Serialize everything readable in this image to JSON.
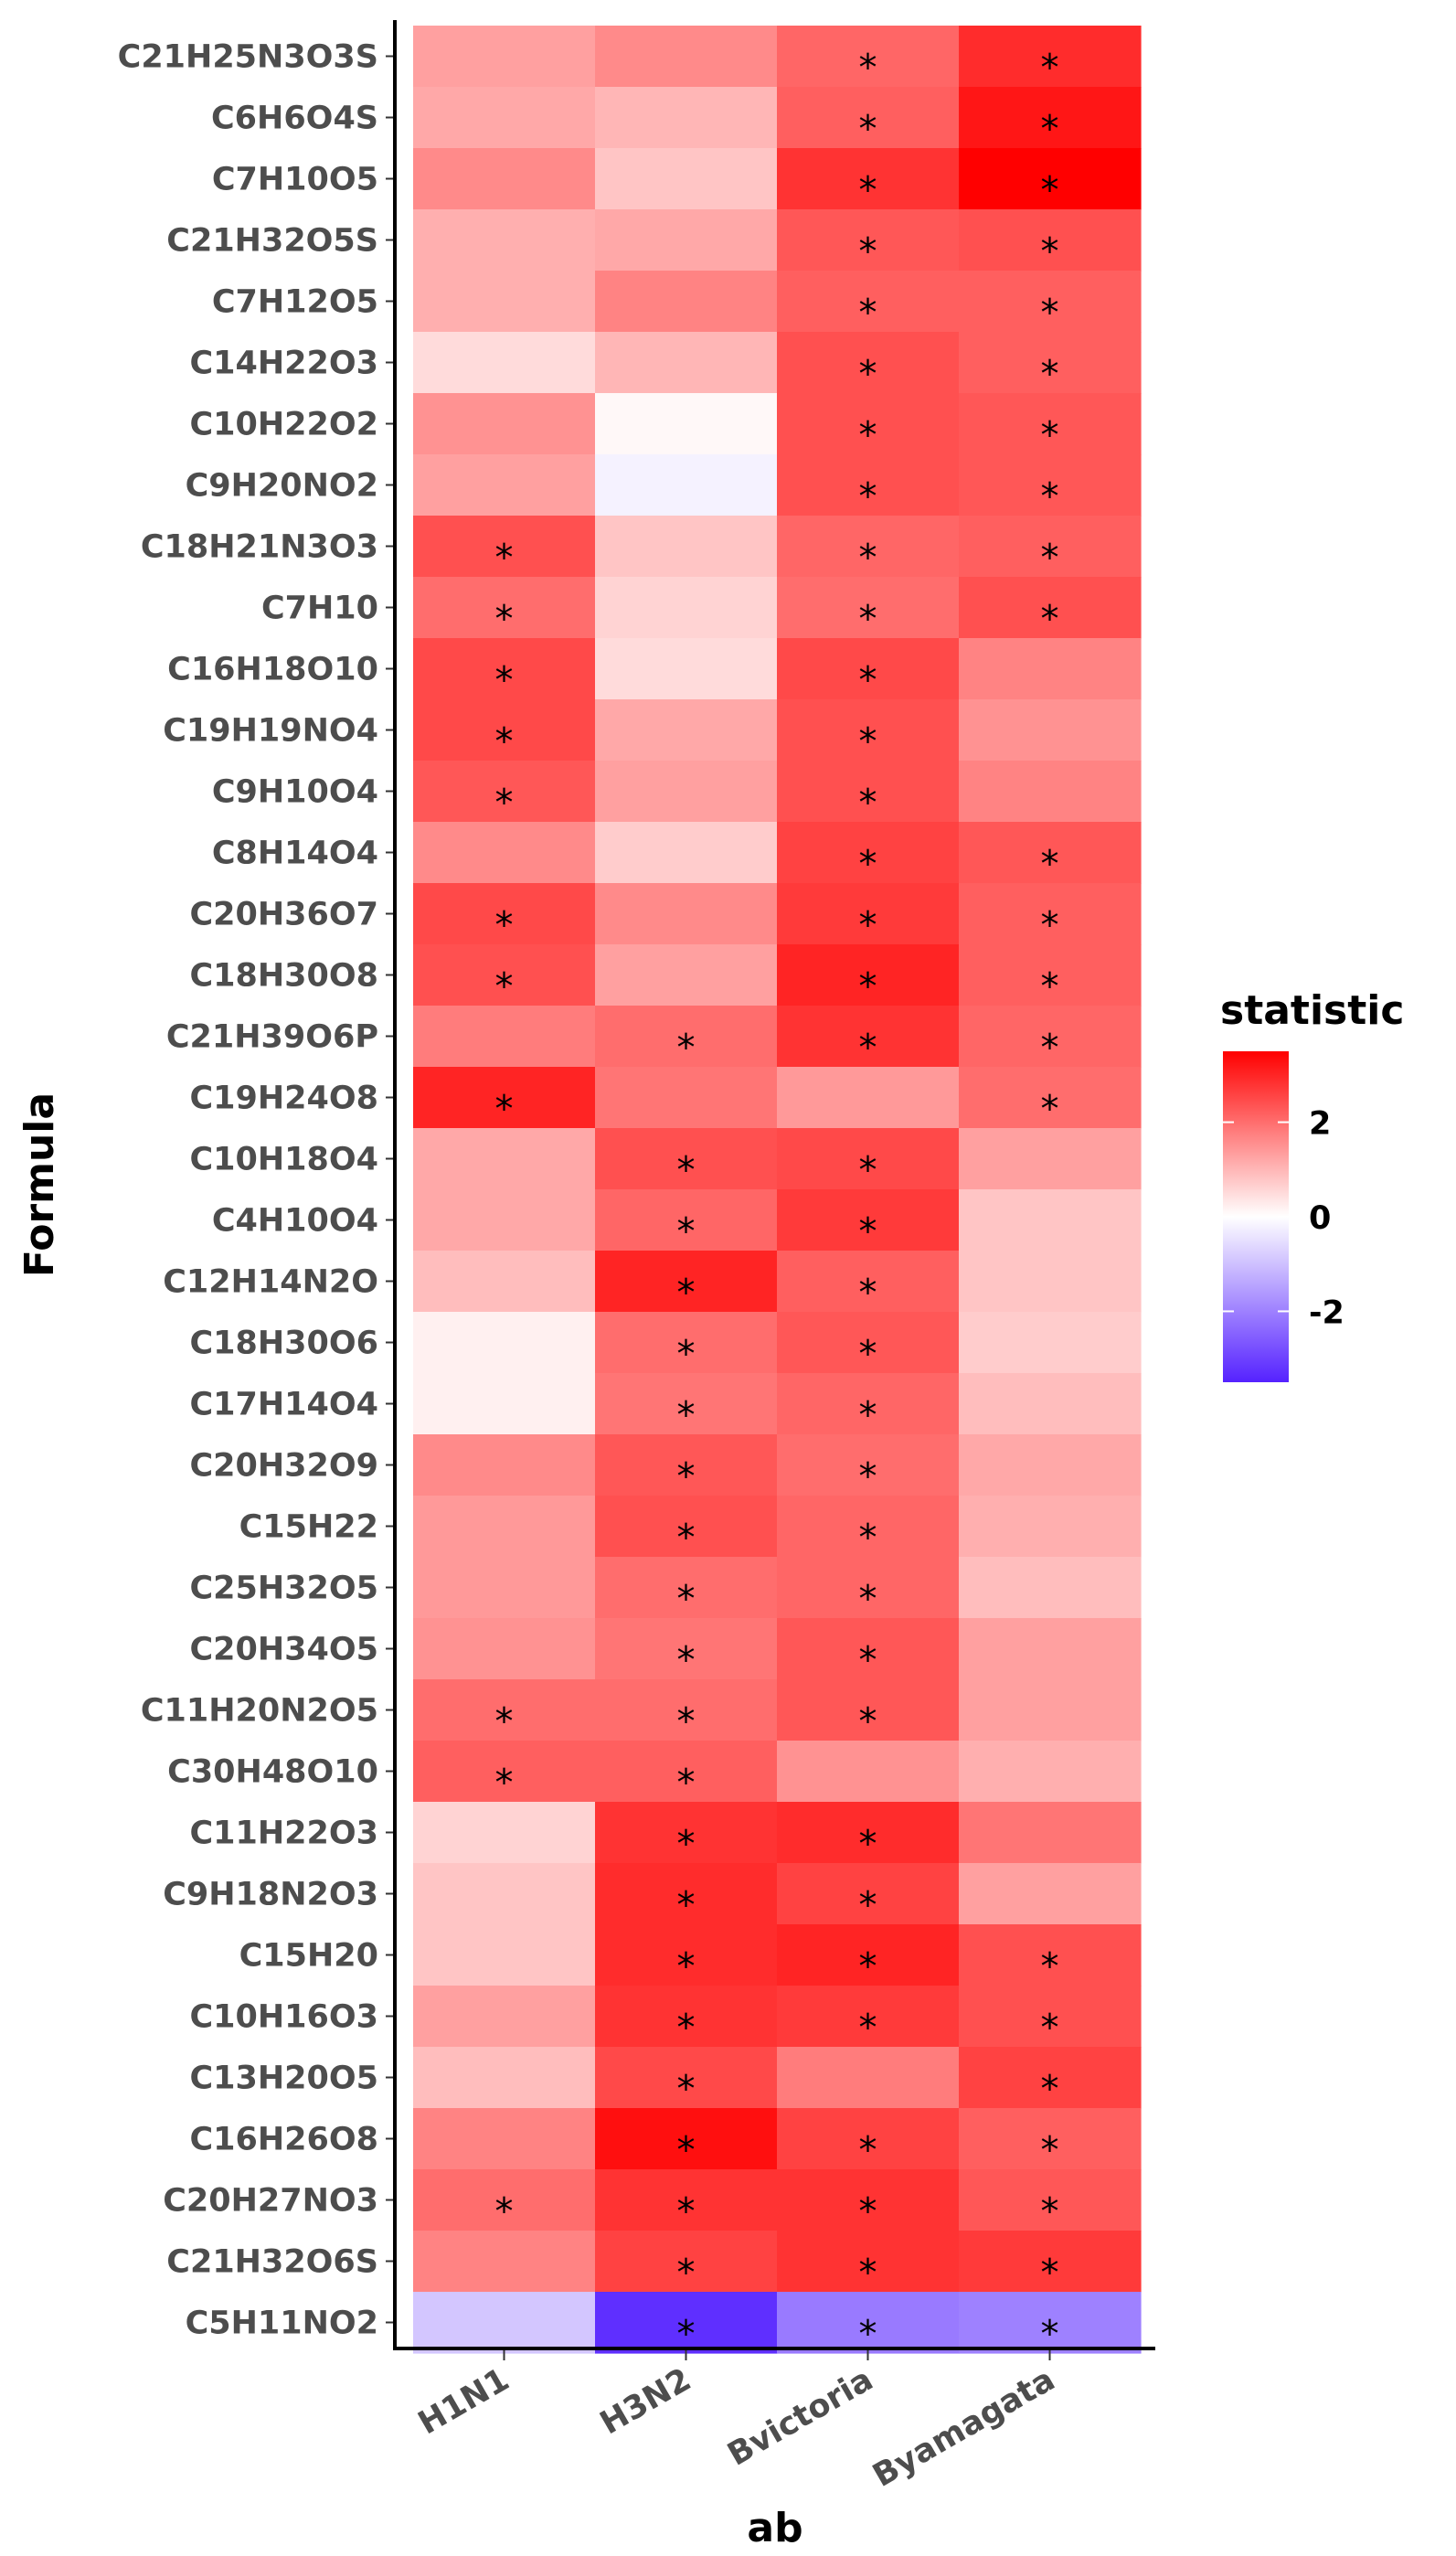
{
  "chart_data": {
    "type": "heatmap",
    "xlabel": "ab",
    "ylabel": "Formula",
    "x_categories": [
      "H1N1",
      "H3N2",
      "Bvictoria",
      "Byamagata"
    ],
    "y_categories": [
      "C21H25N3O3S",
      "C6H6O4S",
      "C7H10O5",
      "C21H32O5S",
      "C7H12O5",
      "C14H22O3",
      "C10H22O2",
      "C9H20NO2",
      "C18H21N3O3",
      "C7H10",
      "C16H18O10",
      "C19H19NO4",
      "C9H10O4",
      "C8H14O4",
      "C20H36O7",
      "C18H30O8",
      "C21H39O6P",
      "C19H24O8",
      "C10H18O4",
      "C4H10O4",
      "C12H14N2O",
      "C18H30O6",
      "C17H14O4",
      "C20H32O9",
      "C15H22",
      "C25H32O5",
      "C20H34O5",
      "C11H20N2O5",
      "C30H48O10",
      "C11H22O3",
      "C9H18N2O3",
      "C15H20",
      "C10H16O3",
      "C13H20O5",
      "C16H26O8",
      "C20H27NO3",
      "C21H32O6S",
      "C5H11NO2"
    ],
    "values": [
      [
        1.3,
        1.6,
        2.1,
        2.9
      ],
      [
        1.2,
        1.0,
        2.2,
        3.2
      ],
      [
        1.6,
        0.8,
        2.8,
        3.6
      ],
      [
        1.1,
        1.2,
        2.3,
        2.4
      ],
      [
        1.1,
        1.7,
        2.2,
        2.2
      ],
      [
        0.5,
        1.0,
        2.4,
        2.2
      ],
      [
        1.5,
        0.1,
        2.4,
        2.3
      ],
      [
        1.3,
        -0.2,
        2.4,
        2.3
      ],
      [
        2.4,
        0.8,
        2.1,
        2.2
      ],
      [
        2.0,
        0.6,
        2.0,
        2.4
      ],
      [
        2.5,
        0.5,
        2.5,
        1.7
      ],
      [
        2.5,
        1.2,
        2.4,
        1.5
      ],
      [
        2.3,
        1.3,
        2.4,
        1.7
      ],
      [
        1.6,
        0.7,
        2.6,
        2.3
      ],
      [
        2.5,
        1.6,
        2.7,
        2.2
      ],
      [
        2.4,
        1.3,
        3.0,
        2.2
      ],
      [
        1.8,
        2.0,
        2.8,
        2.1
      ],
      [
        3.0,
        1.9,
        1.4,
        2.0
      ],
      [
        1.2,
        2.4,
        2.5,
        1.3
      ],
      [
        1.2,
        2.1,
        2.7,
        0.8
      ],
      [
        0.9,
        3.0,
        2.2,
        0.8
      ],
      [
        0.2,
        2.0,
        2.3,
        0.7
      ],
      [
        0.2,
        1.9,
        2.1,
        0.9
      ],
      [
        1.6,
        2.3,
        2.0,
        1.2
      ],
      [
        1.4,
        2.4,
        2.1,
        1.1
      ],
      [
        1.4,
        2.0,
        2.1,
        0.9
      ],
      [
        1.5,
        1.9,
        2.3,
        1.3
      ],
      [
        2.0,
        2.0,
        2.3,
        1.3
      ],
      [
        2.2,
        2.2,
        1.5,
        1.1
      ],
      [
        0.6,
        2.8,
        2.9,
        1.9
      ],
      [
        0.8,
        2.9,
        2.6,
        1.3
      ],
      [
        0.8,
        2.9,
        3.0,
        2.4
      ],
      [
        1.3,
        2.8,
        2.7,
        2.4
      ],
      [
        0.9,
        2.5,
        1.8,
        2.6
      ],
      [
        1.7,
        3.3,
        2.6,
        2.2
      ],
      [
        2.0,
        2.8,
        2.8,
        2.3
      ],
      [
        1.7,
        2.6,
        2.8,
        2.7
      ],
      [
        -0.9,
        -3.3,
        -2.1,
        -2.0
      ]
    ],
    "significant": [
      [
        0,
        0,
        1,
        1
      ],
      [
        0,
        0,
        1,
        1
      ],
      [
        0,
        0,
        1,
        1
      ],
      [
        0,
        0,
        1,
        1
      ],
      [
        0,
        0,
        1,
        1
      ],
      [
        0,
        0,
        1,
        1
      ],
      [
        0,
        0,
        1,
        1
      ],
      [
        0,
        0,
        1,
        1
      ],
      [
        1,
        0,
        1,
        1
      ],
      [
        1,
        0,
        1,
        1
      ],
      [
        1,
        0,
        1,
        0
      ],
      [
        1,
        0,
        1,
        0
      ],
      [
        1,
        0,
        1,
        0
      ],
      [
        0,
        0,
        1,
        1
      ],
      [
        1,
        0,
        1,
        1
      ],
      [
        1,
        0,
        1,
        1
      ],
      [
        0,
        1,
        1,
        1
      ],
      [
        1,
        0,
        0,
        1
      ],
      [
        0,
        1,
        1,
        0
      ],
      [
        0,
        1,
        1,
        0
      ],
      [
        0,
        1,
        1,
        0
      ],
      [
        0,
        1,
        1,
        0
      ],
      [
        0,
        1,
        1,
        0
      ],
      [
        0,
        1,
        1,
        0
      ],
      [
        0,
        1,
        1,
        0
      ],
      [
        0,
        1,
        1,
        0
      ],
      [
        0,
        1,
        1,
        0
      ],
      [
        1,
        1,
        1,
        0
      ],
      [
        1,
        1,
        0,
        0
      ],
      [
        0,
        1,
        1,
        0
      ],
      [
        0,
        1,
        1,
        0
      ],
      [
        0,
        1,
        1,
        1
      ],
      [
        0,
        1,
        1,
        1
      ],
      [
        0,
        1,
        0,
        1
      ],
      [
        0,
        1,
        1,
        1
      ],
      [
        1,
        1,
        1,
        1
      ],
      [
        0,
        1,
        1,
        1
      ],
      [
        0,
        1,
        1,
        1
      ]
    ],
    "significance_marker": "*",
    "legend": {
      "title": "statistic",
      "placement": "right",
      "ticks": [
        2,
        0,
        -2
      ],
      "tick_labels": [
        "2",
        "0",
        "-2"
      ],
      "range": [
        -3.5,
        3.5
      ],
      "low_color": "#5522ff",
      "mid_color": "#ffffff",
      "high_color": "#ff0000"
    },
    "grid": false
  }
}
